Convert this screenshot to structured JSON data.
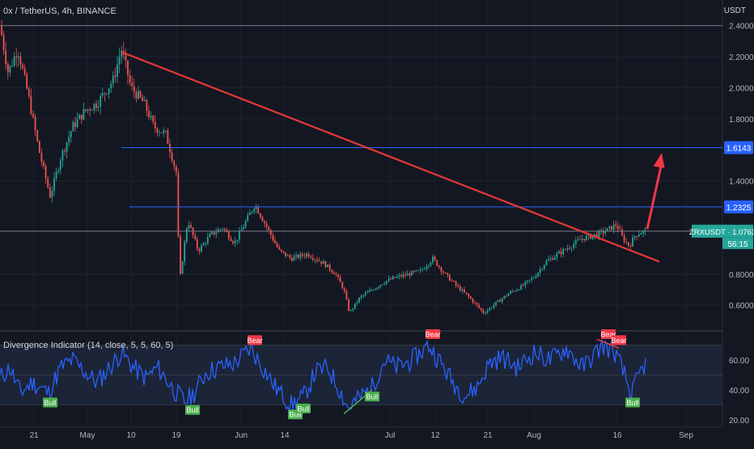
{
  "header": {
    "symbol_title": "0x / TetherUS, 4h, BINANCE",
    "currency": "USDT"
  },
  "chart_data": [
    {
      "type": "candlestick",
      "title": "0x / TetherUS, 4h, BINANCE",
      "ylabel": "USDT",
      "ylim": [
        0.45,
        2.45
      ],
      "y_ticks": [
        "2.4000",
        "2.2000",
        "2.0000",
        "1.8000",
        "1.4000",
        "0.8000",
        "0.6000"
      ],
      "x_ticks": [
        "21",
        "May",
        "10",
        "19",
        "Jun",
        "14",
        "Jul",
        "12",
        "21",
        "Aug",
        "16",
        "Sep"
      ],
      "price_path": [
        {
          "t": 0,
          "p": 2.4
        },
        {
          "t": 10,
          "p": 2.1
        },
        {
          "t": 22,
          "p": 2.25
        },
        {
          "t": 35,
          "p": 1.95
        },
        {
          "t": 48,
          "p": 1.6
        },
        {
          "t": 62,
          "p": 1.3
        },
        {
          "t": 75,
          "p": 1.55
        },
        {
          "t": 90,
          "p": 1.75
        },
        {
          "t": 105,
          "p": 1.85
        },
        {
          "t": 120,
          "p": 1.9
        },
        {
          "t": 140,
          "p": 2.05
        },
        {
          "t": 150,
          "p": 2.25
        },
        {
          "t": 162,
          "p": 2.0
        },
        {
          "t": 178,
          "p": 1.9
        },
        {
          "t": 190,
          "p": 1.75
        },
        {
          "t": 205,
          "p": 1.7
        },
        {
          "t": 218,
          "p": 1.45
        },
        {
          "t": 222,
          "p": 0.75
        },
        {
          "t": 232,
          "p": 1.15
        },
        {
          "t": 245,
          "p": 0.95
        },
        {
          "t": 260,
          "p": 1.05
        },
        {
          "t": 275,
          "p": 1.1
        },
        {
          "t": 290,
          "p": 1.0
        },
        {
          "t": 305,
          "p": 1.15
        },
        {
          "t": 315,
          "p": 1.25
        },
        {
          "t": 330,
          "p": 1.1
        },
        {
          "t": 345,
          "p": 0.95
        },
        {
          "t": 360,
          "p": 0.9
        },
        {
          "t": 380,
          "p": 0.93
        },
        {
          "t": 400,
          "p": 0.87
        },
        {
          "t": 415,
          "p": 0.8
        },
        {
          "t": 425,
          "p": 0.7
        },
        {
          "t": 432,
          "p": 0.55
        },
        {
          "t": 445,
          "p": 0.65
        },
        {
          "t": 460,
          "p": 0.7
        },
        {
          "t": 475,
          "p": 0.75
        },
        {
          "t": 490,
          "p": 0.78
        },
        {
          "t": 505,
          "p": 0.8
        },
        {
          "t": 520,
          "p": 0.82
        },
        {
          "t": 535,
          "p": 0.9
        },
        {
          "t": 550,
          "p": 0.8
        },
        {
          "t": 565,
          "p": 0.72
        },
        {
          "t": 580,
          "p": 0.65
        },
        {
          "t": 598,
          "p": 0.55
        },
        {
          "t": 615,
          "p": 0.62
        },
        {
          "t": 630,
          "p": 0.68
        },
        {
          "t": 645,
          "p": 0.72
        },
        {
          "t": 660,
          "p": 0.78
        },
        {
          "t": 675,
          "p": 0.88
        },
        {
          "t": 690,
          "p": 0.93
        },
        {
          "t": 705,
          "p": 0.98
        },
        {
          "t": 720,
          "p": 1.03
        },
        {
          "t": 735,
          "p": 1.05
        },
        {
          "t": 750,
          "p": 1.08
        },
        {
          "t": 762,
          "p": 1.12
        },
        {
          "t": 770,
          "p": 1.03
        },
        {
          "t": 778,
          "p": 0.98
        },
        {
          "t": 785,
          "p": 1.05
        },
        {
          "t": 792,
          "p": 1.07
        },
        {
          "t": 800,
          "p": 1.076
        }
      ],
      "trendline": {
        "start": {
          "t": 150,
          "p": 2.23
        },
        "end": {
          "t": 815,
          "p": 0.88
        },
        "color": "#e53935"
      },
      "horizontal_levels": [
        {
          "price": 2.4,
          "color": "#787b86",
          "span_from_t": 0
        },
        {
          "price": 1.6143,
          "label": "1.6143",
          "color": "#2962ff",
          "span_from_t": 150
        },
        {
          "price": 1.2325,
          "label": "1.2325",
          "color": "#2962ff",
          "span_from_t": 160
        },
        {
          "price": 1.0763,
          "color": "#787b86",
          "span_from_t": 0
        }
      ],
      "arrow": {
        "from": {
          "t": 800,
          "p": 1.09
        },
        "to": {
          "t": 818,
          "p": 1.58
        },
        "color": "#f23645"
      },
      "last_price": {
        "symbol": "ZRXUSDT",
        "value": "1.0763",
        "countdown": "56:15",
        "color": "#26a69a"
      }
    },
    {
      "type": "line",
      "title": "Divergence Indicator (14, close, 5, 5, 60, 5)",
      "ylim": [
        15,
        78
      ],
      "y_ticks": [
        "60.00",
        "40.00",
        "20.00"
      ],
      "band": [
        30,
        70
      ],
      "series_color": "#2962ff",
      "rsi_path": [
        {
          "t": 0,
          "v": 48
        },
        {
          "t": 12,
          "v": 55
        },
        {
          "t": 25,
          "v": 38
        },
        {
          "t": 40,
          "v": 45
        },
        {
          "t": 60,
          "v": 38
        },
        {
          "t": 75,
          "v": 55
        },
        {
          "t": 90,
          "v": 60
        },
        {
          "t": 105,
          "v": 52
        },
        {
          "t": 120,
          "v": 45
        },
        {
          "t": 140,
          "v": 58
        },
        {
          "t": 150,
          "v": 65
        },
        {
          "t": 165,
          "v": 55
        },
        {
          "t": 180,
          "v": 48
        },
        {
          "t": 195,
          "v": 55
        },
        {
          "t": 215,
          "v": 40
        },
        {
          "t": 228,
          "v": 32
        },
        {
          "t": 240,
          "v": 38
        },
        {
          "t": 255,
          "v": 52
        },
        {
          "t": 270,
          "v": 55
        },
        {
          "t": 290,
          "v": 58
        },
        {
          "t": 310,
          "v": 68
        },
        {
          "t": 325,
          "v": 55
        },
        {
          "t": 340,
          "v": 42
        },
        {
          "t": 360,
          "v": 30
        },
        {
          "t": 375,
          "v": 35
        },
        {
          "t": 390,
          "v": 52
        },
        {
          "t": 405,
          "v": 55
        },
        {
          "t": 420,
          "v": 40
        },
        {
          "t": 430,
          "v": 28
        },
        {
          "t": 445,
          "v": 35
        },
        {
          "t": 460,
          "v": 42
        },
        {
          "t": 475,
          "v": 60
        },
        {
          "t": 490,
          "v": 55
        },
        {
          "t": 510,
          "v": 60
        },
        {
          "t": 530,
          "v": 70
        },
        {
          "t": 545,
          "v": 58
        },
        {
          "t": 560,
          "v": 45
        },
        {
          "t": 575,
          "v": 36
        },
        {
          "t": 590,
          "v": 42
        },
        {
          "t": 605,
          "v": 58
        },
        {
          "t": 620,
          "v": 62
        },
        {
          "t": 640,
          "v": 55
        },
        {
          "t": 660,
          "v": 65
        },
        {
          "t": 680,
          "v": 60
        },
        {
          "t": 700,
          "v": 68
        },
        {
          "t": 720,
          "v": 55
        },
        {
          "t": 745,
          "v": 70
        },
        {
          "t": 760,
          "v": 65
        },
        {
          "t": 772,
          "v": 50
        },
        {
          "t": 780,
          "v": 36
        },
        {
          "t": 790,
          "v": 50
        },
        {
          "t": 798,
          "v": 58
        }
      ],
      "signals": [
        {
          "label": "Bull",
          "t": 62,
          "v": 37,
          "kind": "bull"
        },
        {
          "label": "Bear",
          "t": 315,
          "v": 68,
          "kind": "bear"
        },
        {
          "label": "Bull",
          "t": 238,
          "v": 32,
          "kind": "bull"
        },
        {
          "label": "Bull",
          "t": 365,
          "v": 29,
          "kind": "bull"
        },
        {
          "label": "Bull",
          "t": 375,
          "v": 33,
          "kind": "bull"
        },
        {
          "label": "Bull",
          "t": 460,
          "v": 41,
          "kind": "bull"
        },
        {
          "label": "Bear",
          "t": 535,
          "v": 72,
          "kind": "bear"
        },
        {
          "label": "Bear",
          "t": 752,
          "v": 72,
          "kind": "bear"
        },
        {
          "label": "Bear",
          "t": 765,
          "v": 68,
          "kind": "bear"
        },
        {
          "label": "Bull",
          "t": 782,
          "v": 37,
          "kind": "bull"
        }
      ]
    }
  ],
  "colors": {
    "background": "#131722",
    "grid": "#1e222d",
    "up": "#26a69a",
    "down": "#ef5350",
    "axis_text": "#b2b5be",
    "bull_tag": "#4caf50",
    "bear_tag": "#f23645"
  }
}
